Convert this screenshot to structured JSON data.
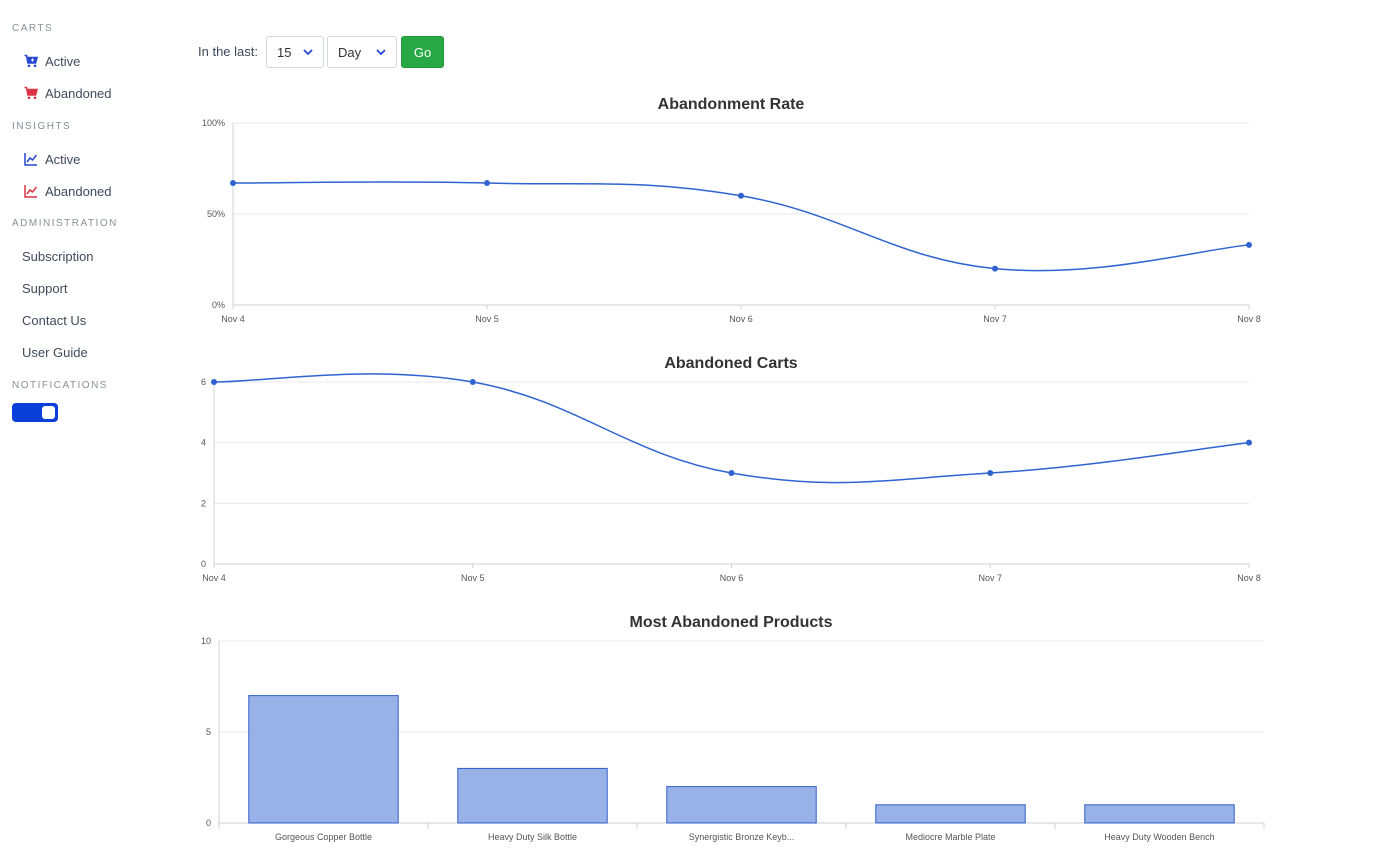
{
  "sidebar": {
    "sections": [
      {
        "title": "CARTS",
        "items": [
          {
            "label": "Active",
            "icon": "cart-active-icon",
            "color": "#2547d0"
          },
          {
            "label": "Abandoned",
            "icon": "cart-abandoned-icon",
            "color": "#dc3545"
          }
        ]
      },
      {
        "title": "INSIGHTS",
        "items": [
          {
            "label": "Active",
            "icon": "chart-line-active-icon",
            "color": "#2547d0"
          },
          {
            "label": "Abandoned",
            "icon": "chart-line-abandoned-icon",
            "color": "#dc3545"
          }
        ]
      },
      {
        "title": "ADMINISTRATION",
        "items": [
          {
            "label": "Subscription"
          },
          {
            "label": "Support"
          },
          {
            "label": "Contact Us"
          },
          {
            "label": "User Guide"
          }
        ]
      },
      {
        "title": "NOTIFICATIONS"
      }
    ],
    "notifications_on": true
  },
  "filter": {
    "label": "In the last:",
    "amount": "15",
    "unit": "Day",
    "go_label": "Go"
  },
  "colors": {
    "line": "#2f63d0",
    "bar_fill": "#98b1e6",
    "bar_stroke": "#2f5cc9",
    "go": "#28a745",
    "toggle": "#0a3fd9"
  },
  "chart_data": [
    {
      "type": "line",
      "title": "Abandonment Rate",
      "x": [
        "Nov 4",
        "Nov 5",
        "Nov 6",
        "Nov 7",
        "Nov 8"
      ],
      "values": [
        67,
        67,
        60,
        20,
        33
      ],
      "y_ticks": [
        "0%",
        "50%",
        "100%"
      ],
      "ylim": [
        0,
        100
      ],
      "grid": true
    },
    {
      "type": "line",
      "title": "Abandoned Carts",
      "x": [
        "Nov 4",
        "Nov 5",
        "Nov 6",
        "Nov 7",
        "Nov 8"
      ],
      "values": [
        6,
        6,
        3,
        3,
        4
      ],
      "y_ticks": [
        "0",
        "2",
        "4",
        "6"
      ],
      "ylim": [
        0,
        6
      ],
      "grid": true
    },
    {
      "type": "bar",
      "title": "Most Abandoned Products",
      "categories": [
        "Gorgeous Copper Bottle",
        "Heavy Duty Silk Bottle",
        "Synergistic Bronze Keyb...",
        "Mediocre Marble Plate",
        "Heavy Duty Wooden Bench"
      ],
      "values": [
        7,
        3,
        2,
        1,
        1
      ],
      "y_ticks": [
        "0",
        "5",
        "10"
      ],
      "ylim": [
        0,
        10
      ],
      "grid": true
    }
  ]
}
